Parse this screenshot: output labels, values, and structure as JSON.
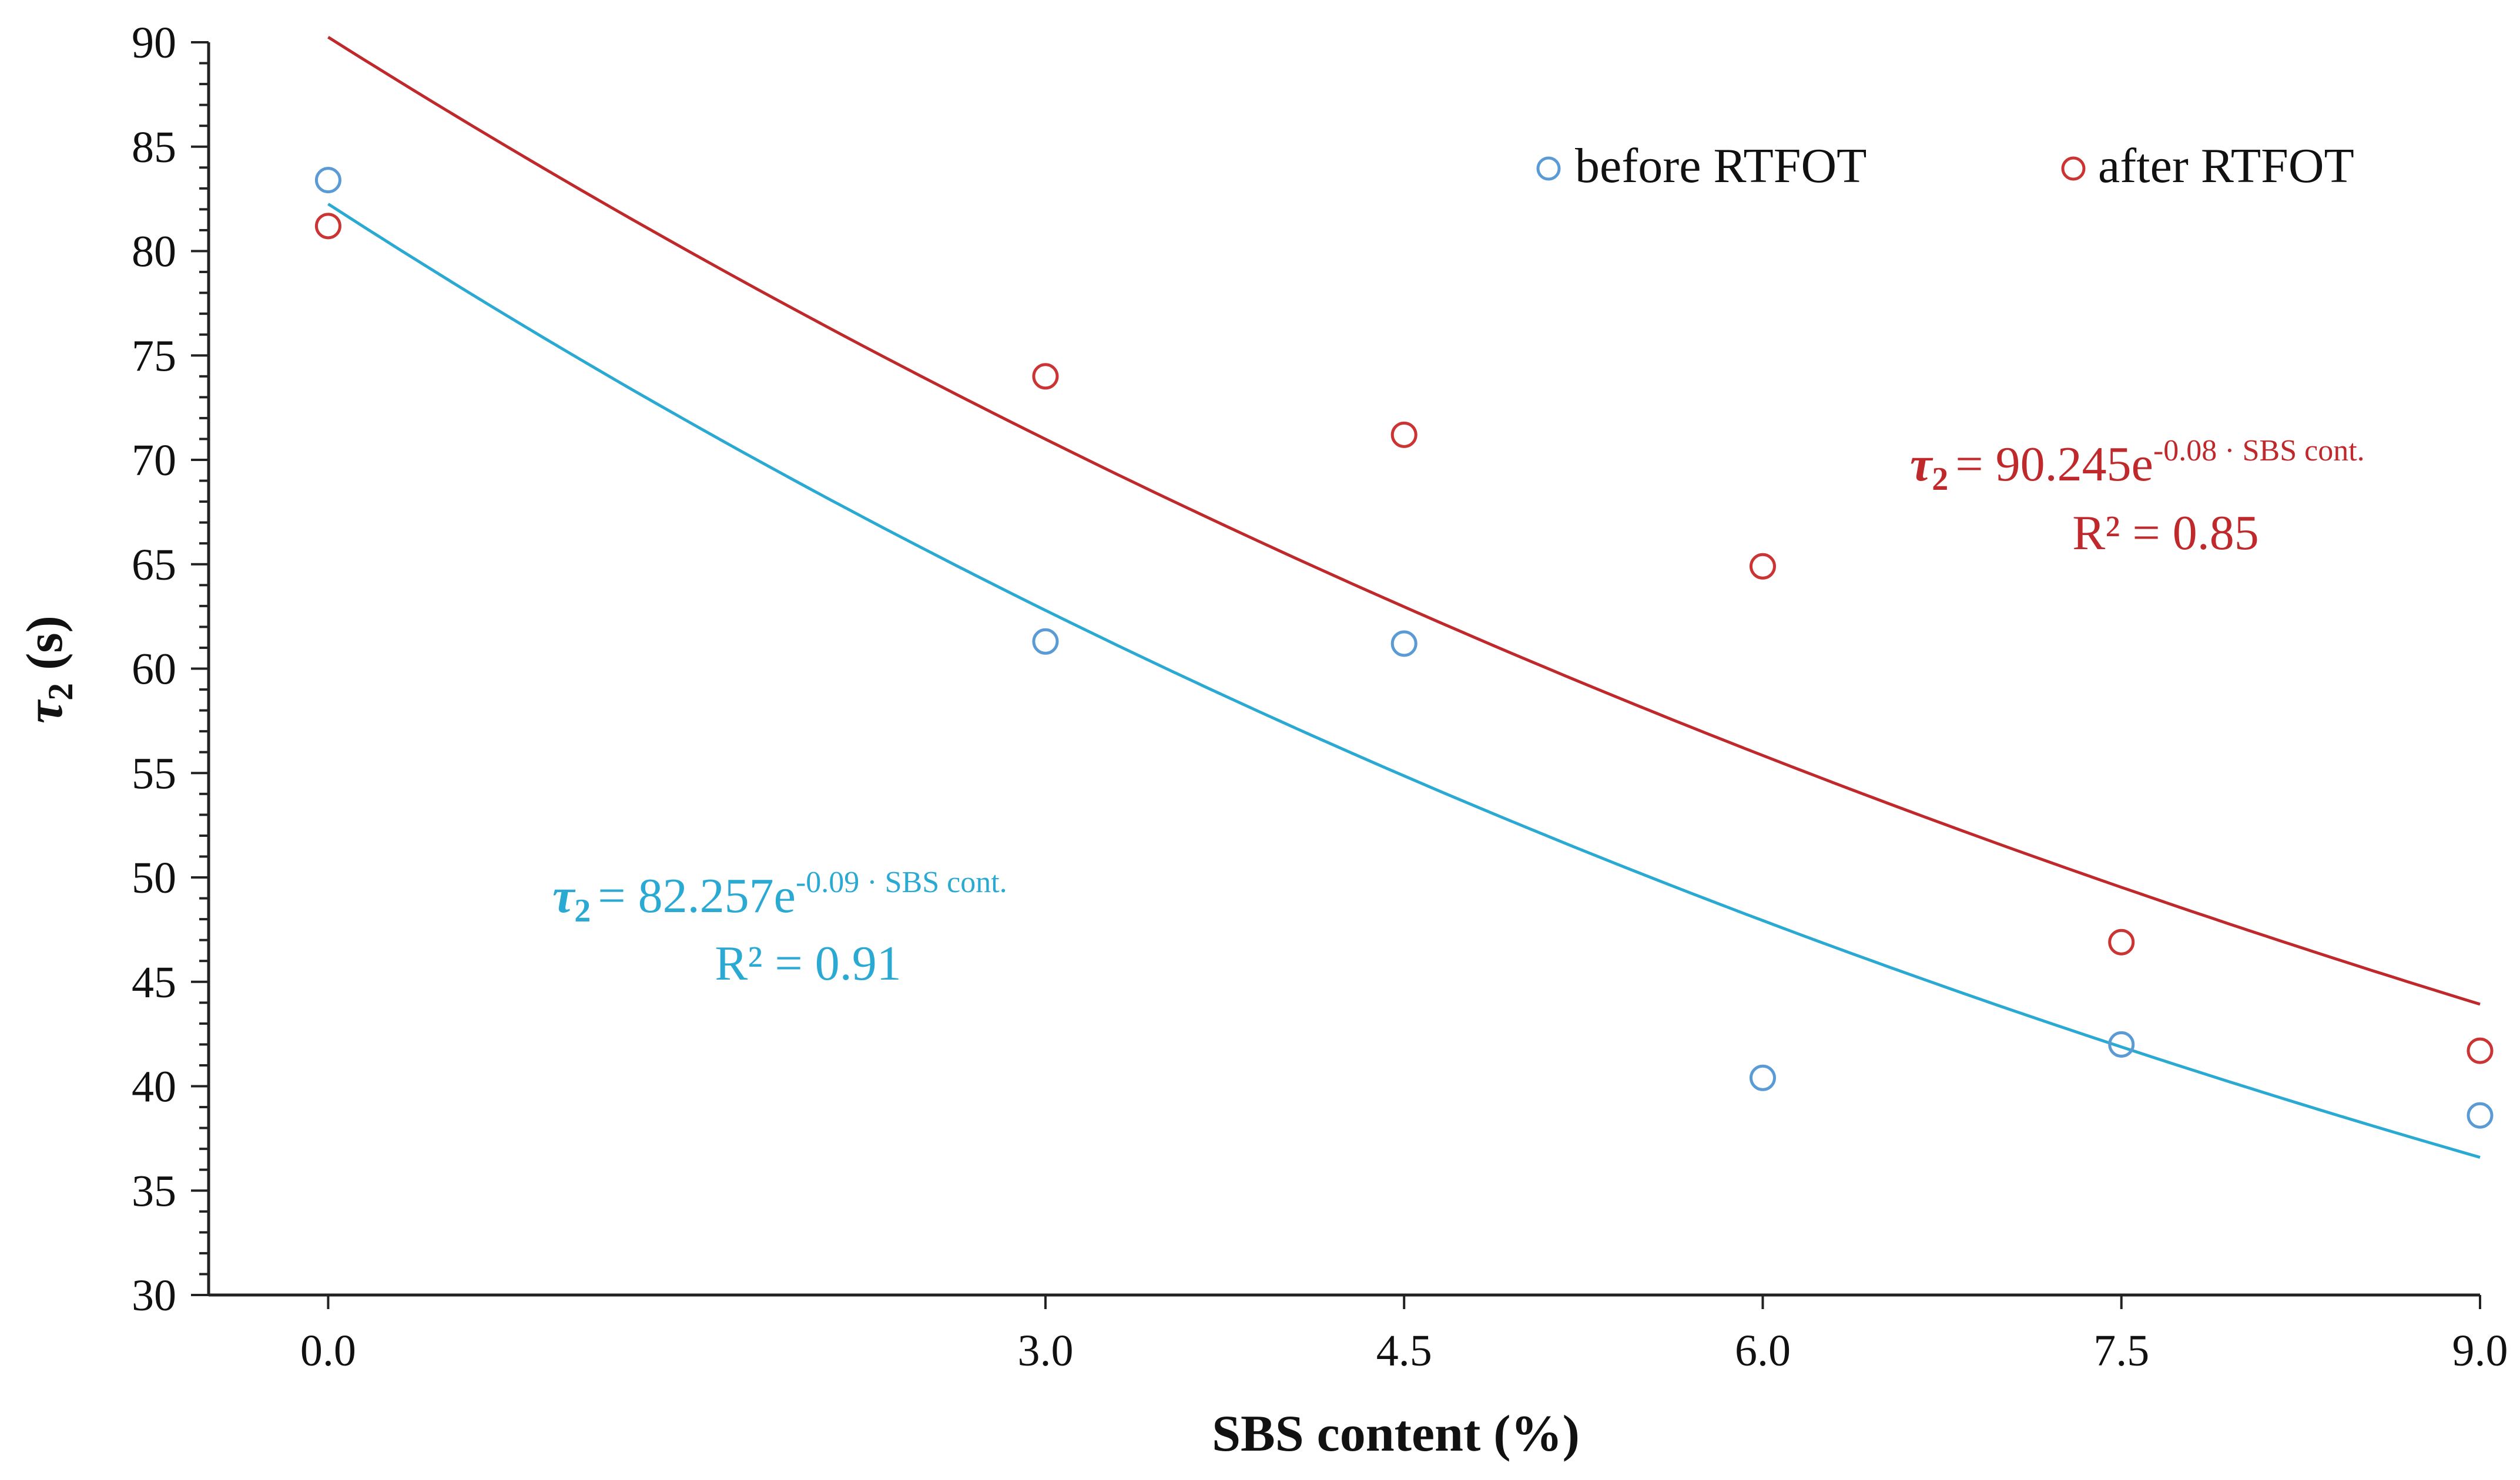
{
  "chart_data": {
    "type": "scatter",
    "title": "",
    "xlabel": "SBS content (%)",
    "ylabel_symbol": "τ",
    "ylabel_subscript": "2",
    "ylabel_unit": " (s)",
    "xlim": [
      -0.5,
      9.0
    ],
    "ylim": [
      30,
      90
    ],
    "x_ticks": [
      0.0,
      3.0,
      4.5,
      6.0,
      7.5,
      9.0
    ],
    "x_tick_labels": [
      "0.0",
      "3.0",
      "4.5",
      "6.0",
      "7.5",
      "9.0"
    ],
    "y_ticks": [
      30,
      35,
      40,
      45,
      50,
      55,
      60,
      65,
      70,
      75,
      80,
      85,
      90
    ],
    "y_tick_labels": [
      "30",
      "35",
      "40",
      "45",
      "50",
      "55",
      "60",
      "65",
      "70",
      "75",
      "80",
      "85",
      "90"
    ],
    "y_minor_step": 1,
    "legend_position": "top-right",
    "series": [
      {
        "name": "before RTFOT",
        "color": "#5b9bd5",
        "marker": "open-circle",
        "x": [
          0.0,
          3.0,
          4.5,
          6.0,
          7.5,
          9.0
        ],
        "y": [
          83.4,
          61.3,
          61.2,
          40.4,
          42.0,
          38.6
        ],
        "fit": {
          "type": "exponential",
          "a": 82.257,
          "b": -0.09,
          "color": "#2aa9d2",
          "equation_main": "= 82.257e",
          "equation_exp": "-0.09 · SBS cont.",
          "r2_label": "R² = 0.91"
        }
      },
      {
        "name": "after RTFOT",
        "color": "#cc3333",
        "marker": "open-circle",
        "x": [
          0.0,
          3.0,
          4.5,
          6.0,
          7.5,
          9.0
        ],
        "y": [
          81.2,
          74.0,
          71.2,
          64.9,
          46.9,
          41.7
        ],
        "fit": {
          "type": "exponential",
          "a": 90.245,
          "b": -0.08,
          "color": "#c0292b",
          "equation_main": "= 90.245e",
          "equation_exp": "-0.08 · SBS cont.",
          "r2_label": "R² = 0.85"
        }
      }
    ]
  }
}
